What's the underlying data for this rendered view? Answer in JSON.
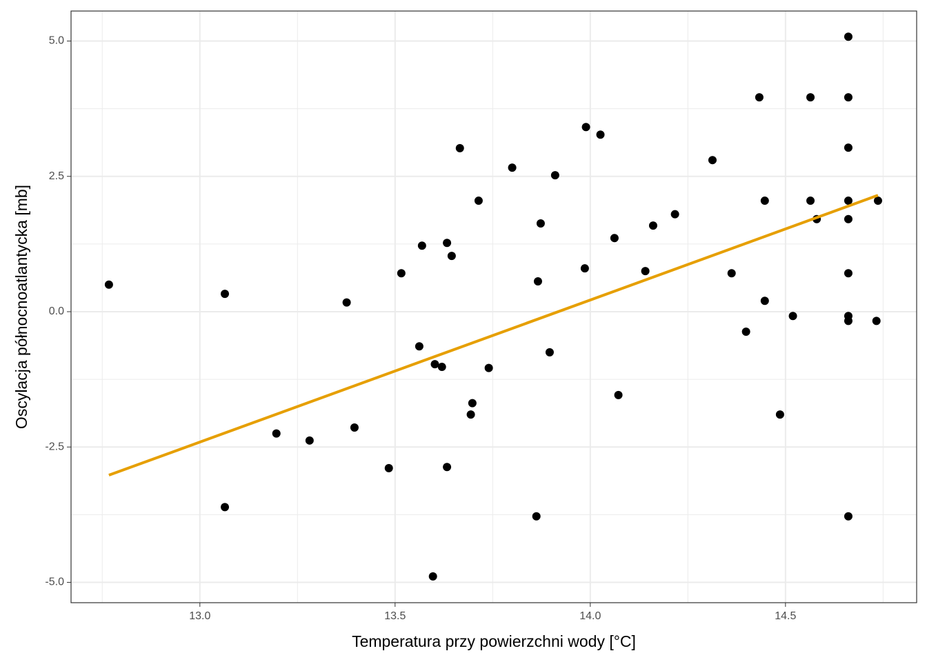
{
  "chart_data": {
    "type": "scatter",
    "xlabel": "Temperatura przy powierzchni wody [°C]",
    "ylabel": "Oscylacja północnoatlantycka [mb]",
    "xlim": [
      12.67,
      14.836
    ],
    "ylim": [
      -5.376,
      5.554
    ],
    "xticks": [
      {
        "value": 13,
        "label": "13.0"
      },
      13.5,
      {
        "value": 14,
        "label": "14.0"
      },
      14.5
    ],
    "yticks": [
      {
        "value": -5,
        "label": "-5.0"
      },
      -2.5,
      {
        "value": 0,
        "label": "0.0"
      },
      2.5,
      {
        "value": 5,
        "label": "5.0"
      }
    ],
    "grid": true,
    "series": [
      {
        "color": "#000000",
        "x": [
          12.767,
          13.064,
          13.064,
          13.196,
          13.281,
          13.376,
          13.396,
          13.484,
          13.516,
          13.562,
          13.569,
          13.597,
          13.602,
          13.62,
          13.633,
          13.633,
          13.645,
          13.666,
          13.694,
          13.698,
          13.714,
          13.74,
          13.8,
          13.862,
          13.866,
          13.873,
          13.896,
          13.91,
          13.986,
          13.989,
          14.026,
          14.062,
          14.072,
          14.141,
          14.161,
          14.217,
          14.313,
          14.362,
          14.399,
          14.433,
          14.447,
          14.447,
          14.486,
          14.519,
          14.564,
          14.564,
          14.58,
          14.661,
          14.661,
          14.661,
          14.661,
          14.661,
          14.661,
          14.661,
          14.661,
          14.661,
          14.737,
          14.733
        ],
        "values": [
          0.5,
          0.33,
          -3.61,
          -2.25,
          -2.38,
          0.17,
          -2.14,
          -2.89,
          0.71,
          -0.64,
          1.22,
          -4.89,
          -0.97,
          -1.02,
          1.27,
          -2.87,
          1.03,
          3.02,
          -1.9,
          -1.69,
          2.05,
          -1.04,
          2.66,
          -3.78,
          0.56,
          1.63,
          -0.75,
          2.52,
          0.8,
          3.41,
          3.27,
          1.36,
          -1.54,
          0.75,
          1.59,
          1.8,
          2.8,
          0.71,
          -0.37,
          3.96,
          2.05,
          0.2,
          -1.9,
          -0.08,
          3.96,
          2.05,
          1.71,
          5.08,
          3.96,
          3.03,
          2.05,
          1.71,
          0.71,
          -0.08,
          -0.17,
          -3.78,
          2.05,
          -0.17
        ]
      },
      {
        "type": "line",
        "color": "#E69F00",
        "x": [
          12.767,
          14.737
        ],
        "values": [
          -3.02,
          2.15
        ]
      }
    ]
  }
}
